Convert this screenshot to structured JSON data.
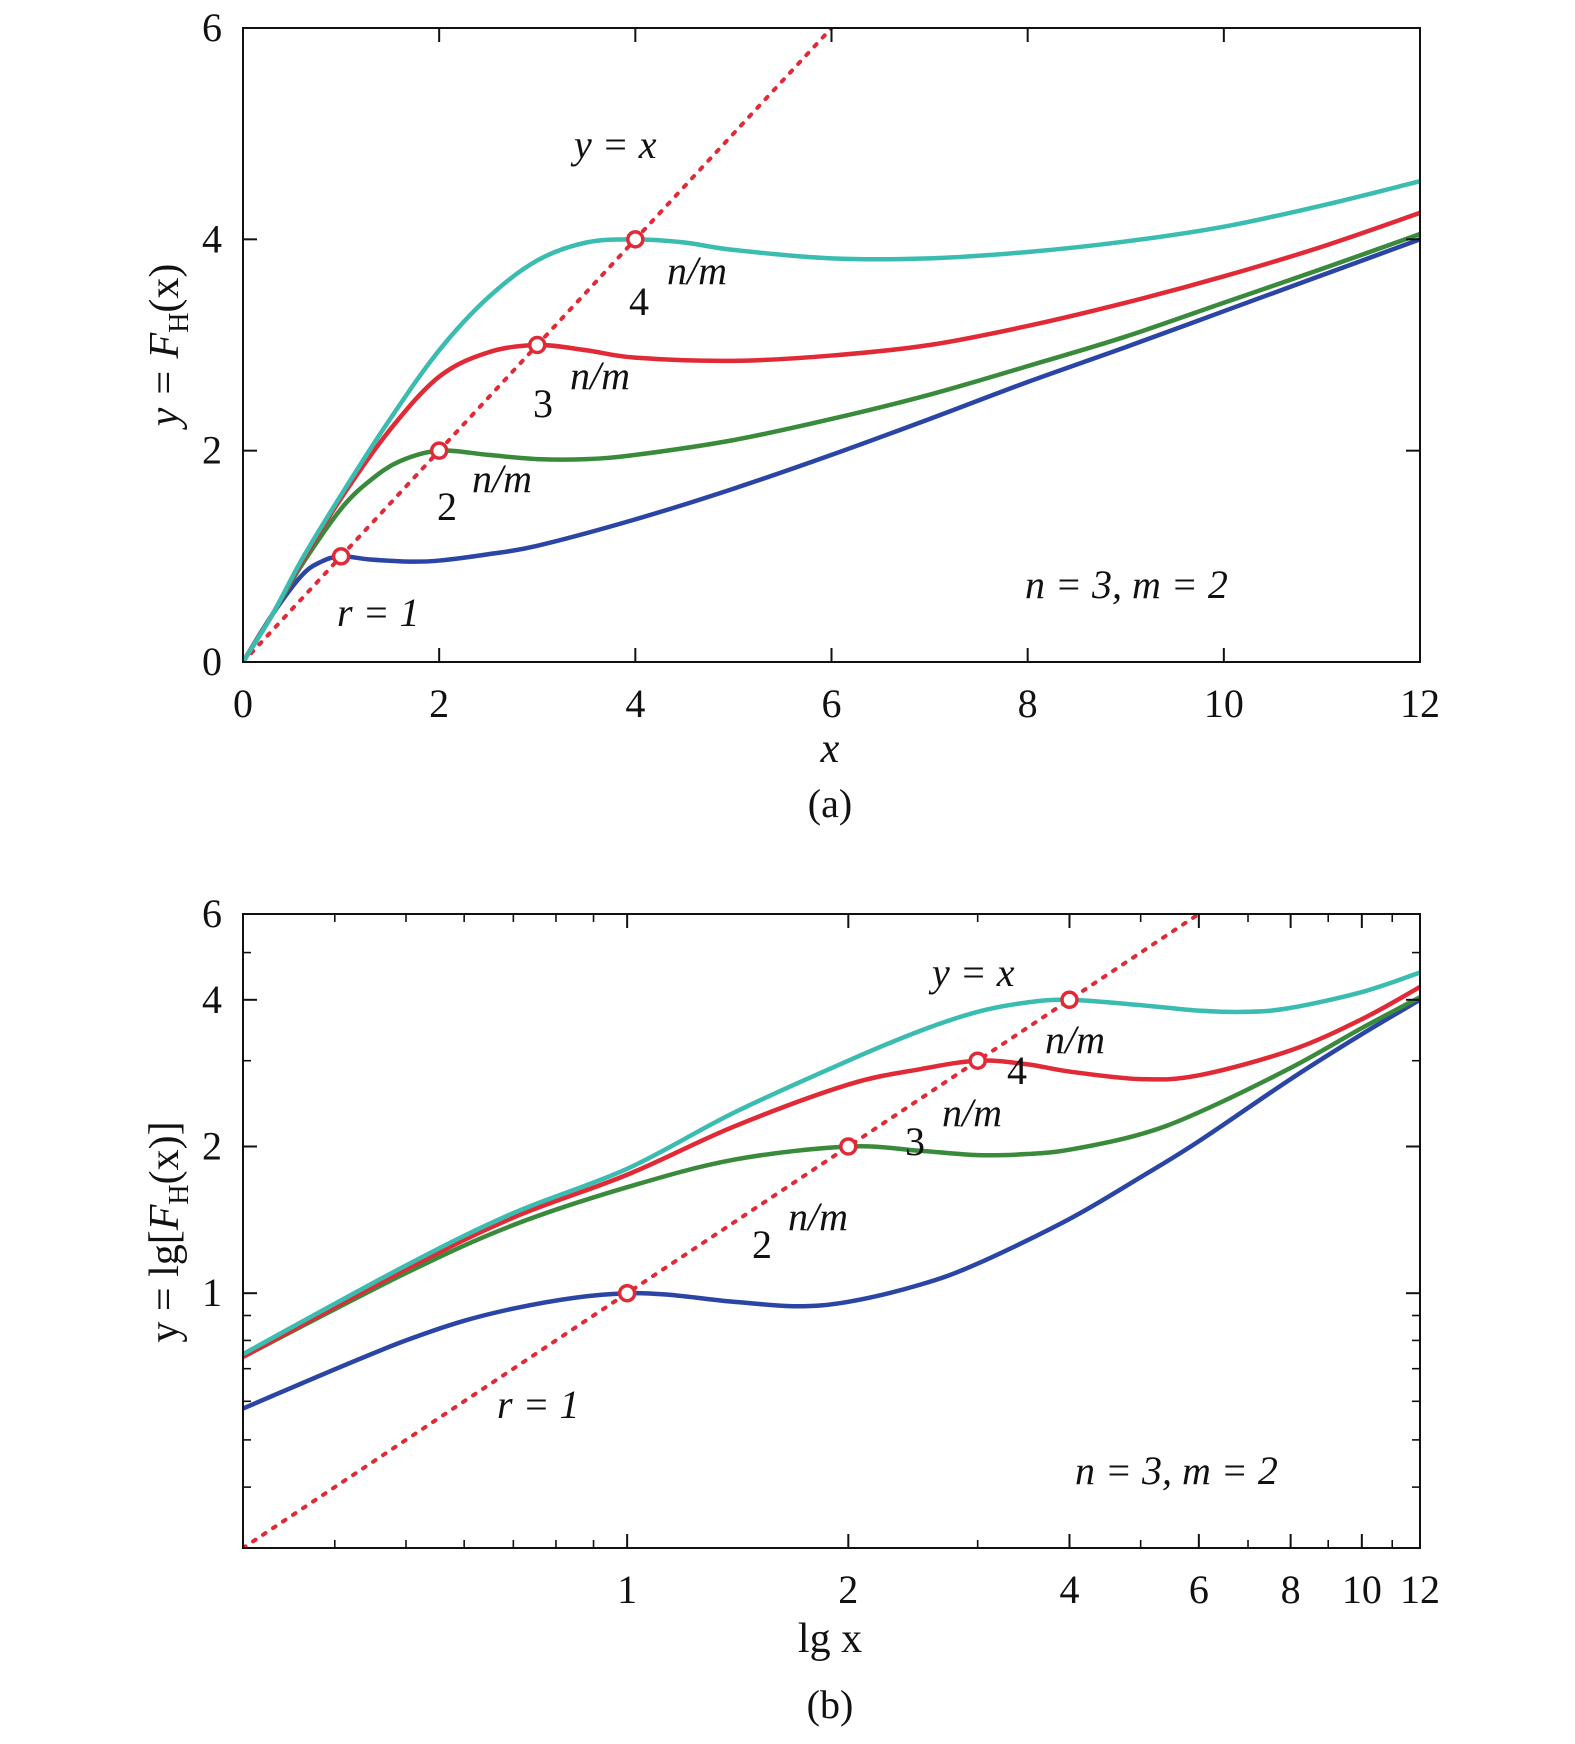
{
  "chart_data": [
    {
      "type": "line",
      "panel_label": "(a)",
      "xlabel": "x",
      "ylabel": {
        "prefix": "y = ",
        "F": "F",
        "sub": "H",
        "suffix": "(x)"
      },
      "xlim": [
        0,
        12
      ],
      "ylim": [
        0,
        6
      ],
      "x_scale": "linear",
      "y_scale": "linear",
      "xticks": [
        0,
        2,
        4,
        6,
        8,
        10,
        12
      ],
      "xtick_labels": [
        "0",
        "2",
        "4",
        "6",
        "8",
        "10",
        "12"
      ],
      "yticks": [
        0,
        2,
        4,
        6
      ],
      "ytick_labels": [
        "0",
        "2",
        "4",
        "6"
      ],
      "grid": false,
      "annotations": {
        "identity_line": "y = x",
        "params": "n = 3, m = 2",
        "r_label": "r = 1",
        "base_labels": [
          "2",
          "3",
          "4"
        ],
        "exp_label": "n/m"
      },
      "series": [
        {
          "color": "#2b45a5",
          "x": [
            0,
            0.3,
            0.6,
            0.8,
            1.0,
            1.3,
            1.7,
            2.0,
            2.5,
            3.0,
            4.0,
            5.0,
            6.0,
            7.0,
            8.0,
            9.0,
            10.0,
            11.0,
            12.0
          ],
          "y": [
            0,
            0.45,
            0.82,
            0.95,
            1.0,
            0.97,
            0.95,
            0.96,
            1.02,
            1.1,
            1.35,
            1.64,
            1.96,
            2.3,
            2.65,
            2.98,
            3.32,
            3.66,
            4.0
          ]
        },
        {
          "color": "#3a8a3c",
          "x": [
            0,
            0.3,
            0.6,
            1.0,
            1.3,
            1.6,
            2.0,
            2.5,
            3.0,
            3.5,
            4.0,
            5.0,
            6.0,
            7.0,
            8.0,
            9.0,
            10.0,
            11.0,
            12.0
          ],
          "y": [
            0,
            0.45,
            0.92,
            1.45,
            1.72,
            1.9,
            2.0,
            1.96,
            1.92,
            1.92,
            1.96,
            2.1,
            2.3,
            2.53,
            2.8,
            3.08,
            3.4,
            3.72,
            4.05
          ]
        },
        {
          "color": "#e02a36",
          "x": [
            0,
            0.3,
            0.6,
            1.0,
            1.5,
            2.0,
            2.5,
            3.0,
            3.5,
            4.0,
            5.0,
            6.0,
            7.0,
            8.0,
            9.0,
            10.0,
            11.0,
            12.0
          ],
          "y": [
            0,
            0.45,
            0.95,
            1.55,
            2.2,
            2.7,
            2.93,
            3.0,
            2.95,
            2.88,
            2.85,
            2.9,
            3.0,
            3.18,
            3.4,
            3.65,
            3.93,
            4.25
          ]
        },
        {
          "color": "#3bbcb0",
          "x": [
            0,
            0.3,
            0.6,
            1.0,
            1.5,
            2.0,
            2.5,
            3.0,
            3.5,
            4.0,
            4.5,
            5.0,
            6.0,
            7.0,
            8.0,
            9.0,
            10.0,
            11.0,
            12.0
          ],
          "y": [
            0,
            0.45,
            0.97,
            1.58,
            2.3,
            2.95,
            3.45,
            3.8,
            3.97,
            4.0,
            3.97,
            3.9,
            3.82,
            3.82,
            3.88,
            3.98,
            4.12,
            4.32,
            4.55
          ]
        }
      ],
      "identity": {
        "color": "#e02a36",
        "x": [
          0,
          6
        ],
        "y": [
          0,
          6
        ]
      },
      "markers": {
        "color": "#e02a36",
        "x": [
          1,
          2,
          3,
          4
        ],
        "y": [
          1,
          2,
          3,
          4
        ]
      }
    },
    {
      "type": "line",
      "panel_label": "(b)",
      "xlabel": "lg x",
      "ylabel": {
        "prefix": "y = lg[",
        "F": "F",
        "sub": "H",
        "suffix": "(x)]"
      },
      "xlim": [
        0.3,
        12
      ],
      "ylim": [
        0.3,
        6
      ],
      "x_scale": "log",
      "y_scale": "log",
      "xticks": [
        1,
        2,
        4,
        6,
        8,
        10,
        12
      ],
      "xtick_labels": [
        "1",
        "2",
        "4",
        "6",
        "8",
        "10",
        "12"
      ],
      "yticks": [
        1,
        2,
        4,
        6
      ],
      "ytick_labels": [
        "1",
        "2",
        "4",
        "6"
      ],
      "grid": false,
      "annotations": {
        "identity_line": "y = x",
        "params": "n = 3, m = 2",
        "r_label": "r = 1",
        "base_labels": [
          "2",
          "3",
          "4"
        ],
        "exp_label": "n/m"
      },
      "series": [
        {
          "color": "#2b45a5",
          "x": [
            0.3,
            0.5,
            0.7,
            1.0,
            1.4,
            1.7,
            2.0,
            2.5,
            3.0,
            4.0,
            5.0,
            6.0,
            8.0,
            10.0,
            12.0
          ],
          "y": [
            0.58,
            0.8,
            0.93,
            1.0,
            0.96,
            0.94,
            0.96,
            1.04,
            1.15,
            1.42,
            1.73,
            2.05,
            2.75,
            3.4,
            4.0
          ]
        },
        {
          "color": "#3a8a3c",
          "x": [
            0.3,
            0.5,
            0.7,
            1.0,
            1.4,
            2.0,
            2.5,
            3.0,
            3.5,
            4.0,
            5.0,
            6.0,
            8.0,
            10.0,
            12.0
          ],
          "y": [
            0.74,
            1.1,
            1.38,
            1.65,
            1.88,
            2.0,
            1.96,
            1.92,
            1.93,
            1.97,
            2.12,
            2.35,
            2.9,
            3.5,
            4.05
          ]
        },
        {
          "color": "#e02a36",
          "x": [
            0.3,
            0.5,
            0.7,
            1.0,
            1.4,
            2.0,
            2.5,
            3.0,
            3.5,
            4.0,
            5.0,
            6.0,
            8.0,
            10.0,
            12.0
          ],
          "y": [
            0.74,
            1.12,
            1.43,
            1.75,
            2.2,
            2.68,
            2.88,
            3.0,
            2.95,
            2.85,
            2.75,
            2.8,
            3.15,
            3.65,
            4.25
          ]
        },
        {
          "color": "#3bbcb0",
          "x": [
            0.3,
            0.5,
            0.7,
            1.0,
            1.4,
            2.0,
            2.5,
            3.0,
            3.5,
            4.0,
            5.0,
            6.0,
            7.0,
            8.0,
            10.0,
            12.0
          ],
          "y": [
            0.75,
            1.14,
            1.46,
            1.8,
            2.35,
            3.0,
            3.45,
            3.78,
            3.95,
            4.0,
            3.9,
            3.8,
            3.78,
            3.85,
            4.15,
            4.55
          ]
        }
      ],
      "identity": {
        "color": "#e02a36",
        "x": [
          0.3,
          6
        ],
        "y": [
          0.3,
          6
        ]
      },
      "markers": {
        "color": "#e02a36",
        "x": [
          1,
          2,
          3,
          4
        ],
        "y": [
          1,
          2,
          3,
          4
        ]
      }
    }
  ]
}
